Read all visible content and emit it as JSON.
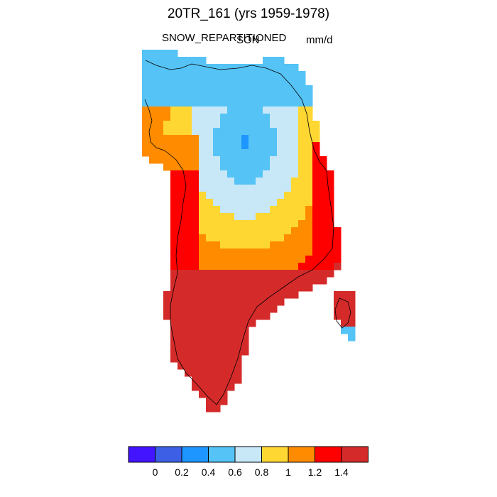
{
  "title": "20TR_161 (yrs 1959-1978)",
  "variable": "SNOW_REPARTITIONED",
  "season": "SON",
  "units": "mm/d",
  "colorbar": {
    "colors": [
      "#4214ff",
      "#3c5fe6",
      "#1e96ff",
      "#55c3f5",
      "#c8e8f8",
      "#ffd732",
      "#ff8c00",
      "#ff0000",
      "#d42a2a"
    ],
    "tick_labels": [
      "0",
      "0.2",
      "0.4",
      "0.6",
      "0.8",
      "1",
      "1.2",
      "1.4"
    ]
  },
  "map_colors": {
    "ocean": "#ffffff",
    "coastline": "#000000"
  }
}
